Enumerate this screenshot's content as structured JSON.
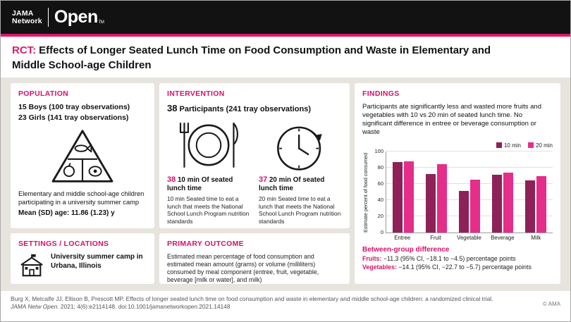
{
  "header": {
    "logo_jama": "JAMA",
    "logo_network": "Network",
    "logo_open": "Open",
    "trademark": "TM"
  },
  "title": {
    "tag": "RCT:",
    "text": "Effects of Longer Seated Lunch Time on Food Consumption and Waste in Elementary and Middle School-age Children"
  },
  "population": {
    "heading": "POPULATION",
    "boys": {
      "num": "15",
      "label": "Boys",
      "detail": "(100 tray observations)"
    },
    "girls": {
      "num": "23",
      "label": "Girls",
      "detail": "(141 tray observations)"
    },
    "description": "Elementary and middle school-age children participating in a university summer camp",
    "age": "Mean (SD) age: 11.86 (1.23) y"
  },
  "intervention": {
    "heading": "INTERVENTION",
    "participants_num": "38",
    "participants_label": "Participants (241 tray observations)",
    "arm1": {
      "num": "38",
      "title": "10 min Of seated lunch time",
      "description": "10 min Seated time to eat a lunch that meets the National School Lunch Program nutrition standards"
    },
    "arm2": {
      "num": "37",
      "title": "20 min Of seated lunch time",
      "description": "20 min Seated time to eat a lunch that meets the National School Lunch Program nutrition standards"
    }
  },
  "settings": {
    "heading": "SETTINGS / LOCATIONS",
    "text": "University summer camp in Urbana, Illinois"
  },
  "primary_outcome": {
    "heading": "PRIMARY OUTCOME",
    "text": "Estimated mean percentage of food consumption and estimated mean amount (grams) or volume (milliliters) consumed by meal component (entree, fruit, vegetable, beverage [milk or water], and milk)"
  },
  "findings": {
    "heading": "FINDINGS",
    "summary": "Participants ate significantly less and wasted more fruits and vegetables with 10 vs 20 min of seated lunch time. No significant difference in entree or beverage consumption or waste",
    "between_group": {
      "heading": "Between-group difference",
      "fruits_label": "Fruits:",
      "fruits_value": "−11.3 (95% CI, −18.1 to −4.5) percentage points",
      "vegetables_label": "Vegetables:",
      "vegetables_value": "−14.1 (95% CI, −22.7 to −5.7) percentage points"
    }
  },
  "chart_data": {
    "type": "bar",
    "categories": [
      "Entree",
      "Fruit",
      "Vegetable",
      "Beverage",
      "Milk"
    ],
    "series": [
      {
        "name": "10 min",
        "color": "#8e2157",
        "values": [
          87,
          72,
          51,
          71,
          64
        ]
      },
      {
        "name": "20 min",
        "color": "#e52e8a",
        "values": [
          88,
          84,
          65,
          74,
          70
        ]
      }
    ],
    "ylabel": "Estimate percent of food consumed",
    "ylim": [
      0,
      100
    ],
    "yticks": [
      0,
      20,
      40,
      60,
      80,
      100
    ],
    "legend_position": "top-right",
    "grid": true
  },
  "footer": {
    "citation_line1": "Burg X, Metcalfe JJ, Ellison B, Prescott MP. Effects of longer seated lunch time on food consumption and waste in elementary and middle school-age children: a randomized clinical trial.",
    "citation_journal": "JAMA Netw Open.",
    "citation_rest": " 2021; 4(6):e2114148. doi:10.1001/jamanetworkopen.2021.14148",
    "copyright": "© AMA"
  },
  "icons": {
    "food-pyramid-icon": "triangle outline containing fish, apple and egg glyphs",
    "plate-fork-knife-icon": "dinner plate with fork and knife",
    "clock-icon": "clock face with hands and arrow",
    "school-icon": "schoolhouse with flag"
  },
  "colors": {
    "accent": "#e0186c",
    "bar_10min": "#8e2157",
    "bar_20min": "#e52e8a",
    "page_bg": "#e7e4de"
  }
}
